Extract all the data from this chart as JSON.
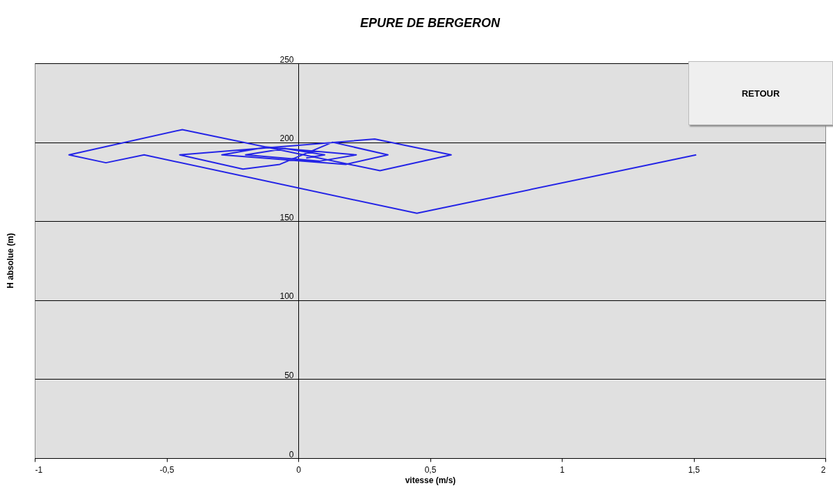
{
  "chart_data": {
    "type": "line",
    "title": "EPURE DE BERGERON",
    "xlabel": "vitesse (m/s)",
    "ylabel": "H absolue (m)",
    "xlim": [
      -1,
      2
    ],
    "xticks": [
      -1,
      {
        "value": -0.5,
        "label": "-0,5"
      },
      0,
      {
        "value": 0.5,
        "label": "0,5"
      },
      1,
      {
        "value": 1.5,
        "label": "1,5"
      },
      2
    ],
    "ylim": [
      0,
      250
    ],
    "yticks": [
      0,
      50,
      100,
      150,
      200,
      250
    ],
    "grid": "y",
    "marker": "none",
    "line_style": "solid",
    "annotations": [
      "RETOUR"
    ],
    "series": [
      {
        "color": "#2424e6",
        "x": [
          1.51,
          0.45,
          -0.585,
          -0.73,
          -0.87,
          -0.44,
          0.31,
          0.58,
          0.29,
          -0.45,
          -0.21,
          -0.07,
          0.13,
          0.34,
          0.18,
          -0.29,
          -0.12,
          0.22,
          0.08,
          -0.2,
          -0.05,
          0.1,
          0.03
        ],
        "values": [
          192,
          155,
          192,
          187,
          192,
          208,
          182,
          192,
          202,
          192,
          183,
          186,
          200,
          192,
          186,
          192,
          197,
          192,
          188,
          192,
          196,
          192,
          190
        ]
      }
    ]
  }
}
